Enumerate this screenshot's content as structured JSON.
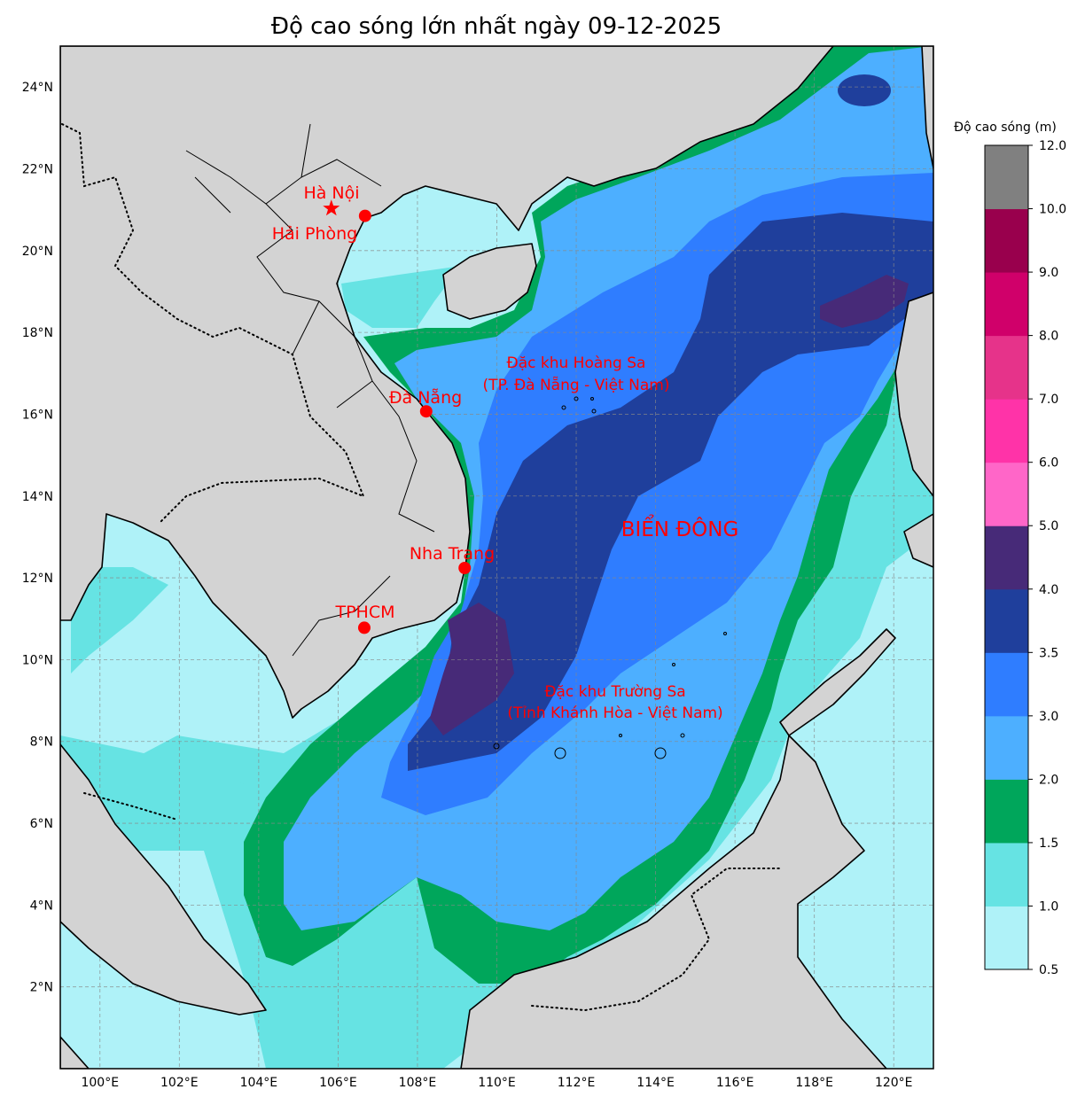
{
  "title": "Độ cao sóng lớn nhất ngày 09-12-2025",
  "map": {
    "extent": {
      "lon_min": 99,
      "lon_max": 121,
      "lat_min": 0,
      "lat_max": 25
    },
    "lon_ticks": [
      {
        "v": 100,
        "label": "100°E"
      },
      {
        "v": 102,
        "label": "102°E"
      },
      {
        "v": 104,
        "label": "104°E"
      },
      {
        "v": 106,
        "label": "106°E"
      },
      {
        "v": 108,
        "label": "108°E"
      },
      {
        "v": 110,
        "label": "110°E"
      },
      {
        "v": 112,
        "label": "112°E"
      },
      {
        "v": 114,
        "label": "114°E"
      },
      {
        "v": 116,
        "label": "116°E"
      },
      {
        "v": 118,
        "label": "118°E"
      },
      {
        "v": 120,
        "label": "120°E"
      }
    ],
    "lat_ticks": [
      {
        "v": 2,
        "label": "2°N"
      },
      {
        "v": 4,
        "label": "4°N"
      },
      {
        "v": 6,
        "label": "6°N"
      },
      {
        "v": 8,
        "label": "8°N"
      },
      {
        "v": 10,
        "label": "10°N"
      },
      {
        "v": 12,
        "label": "12°N"
      },
      {
        "v": 14,
        "label": "14°N"
      },
      {
        "v": 16,
        "label": "16°N"
      },
      {
        "v": 18,
        "label": "18°N"
      },
      {
        "v": 20,
        "label": "20°N"
      },
      {
        "v": 22,
        "label": "22°N"
      },
      {
        "v": 24,
        "label": "24°N"
      }
    ],
    "land_color": "#d3d3d3",
    "cities": [
      {
        "name": "Hà Nội",
        "marker": "star",
        "lon": 105.83,
        "lat": 21.03
      },
      {
        "name": "Hải Phòng",
        "marker": "dot",
        "lon": 106.68,
        "lat": 20.85
      },
      {
        "name": "Đà Nẵng",
        "marker": "dot",
        "lon": 108.22,
        "lat": 16.07
      },
      {
        "name": "Nha Trang",
        "marker": "dot",
        "lon": 109.19,
        "lat": 12.24
      },
      {
        "name": "TPHCM",
        "marker": "dot",
        "lon": 106.66,
        "lat": 10.78
      }
    ],
    "annotations": {
      "hoang_sa_1": "Đặc khu Hoàng Sa",
      "hoang_sa_2": "(TP. Đà Nẵng - Việt Nam)",
      "truong_sa_1": "Đặc khu Trường Sa",
      "truong_sa_2": "(Tỉnh Khánh Hòa - Việt Nam)",
      "sea_name": "BIỂN ĐÔNG"
    }
  },
  "colorbar": {
    "label": "Độ cao sóng (m)",
    "levels": [
      0.5,
      1.0,
      1.5,
      2.0,
      3.0,
      3.5,
      4.0,
      5.0,
      6.0,
      7.0,
      8.0,
      9.0,
      10.0,
      12.0
    ],
    "tick_labels": [
      "0.5",
      "1.0",
      "1.5",
      "2.0",
      "3.0",
      "3.5",
      "4.0",
      "5.0",
      "6.0",
      "7.0",
      "8.0",
      "9.0",
      "10.0",
      "12.0"
    ],
    "colors": [
      "#aff2f8",
      "#66e3e3",
      "#00a65b",
      "#4dafff",
      "#2f7dff",
      "#1f3f9c",
      "#472a78",
      "#ff66c8",
      "#ff33a8",
      "#e6338a",
      "#d0006a",
      "#99004d",
      "#808080"
    ]
  }
}
